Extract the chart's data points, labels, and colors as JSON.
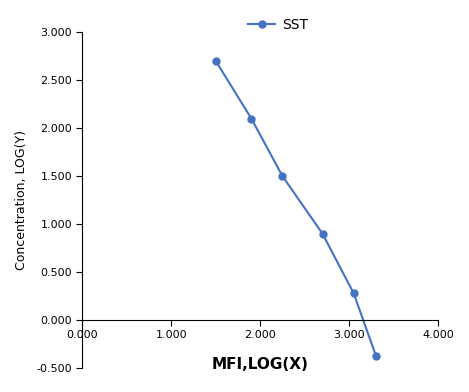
{
  "x": [
    1.5,
    1.9,
    2.25,
    2.7,
    3.05,
    3.3
  ],
  "y": [
    2.7,
    2.1,
    1.5,
    0.9,
    0.28,
    -0.37
  ],
  "line_color": "#4472C4",
  "marker": "o",
  "marker_size": 5,
  "legend_label": "SST",
  "xlabel": "MFI,LOG(X)",
  "ylabel": "Concentration, LOG(Y)",
  "xlim": [
    0.0,
    4.0
  ],
  "ylim": [
    -0.5,
    3.0
  ],
  "xticks": [
    0.0,
    1.0,
    2.0,
    3.0,
    4.0
  ],
  "yticks": [
    -0.5,
    0.0,
    0.5,
    1.0,
    1.5,
    2.0,
    2.5,
    3.0
  ],
  "xlabel_fontsize": 11,
  "ylabel_fontsize": 9,
  "tick_fontsize": 8,
  "legend_fontsize": 10,
  "background_color": "#ffffff"
}
